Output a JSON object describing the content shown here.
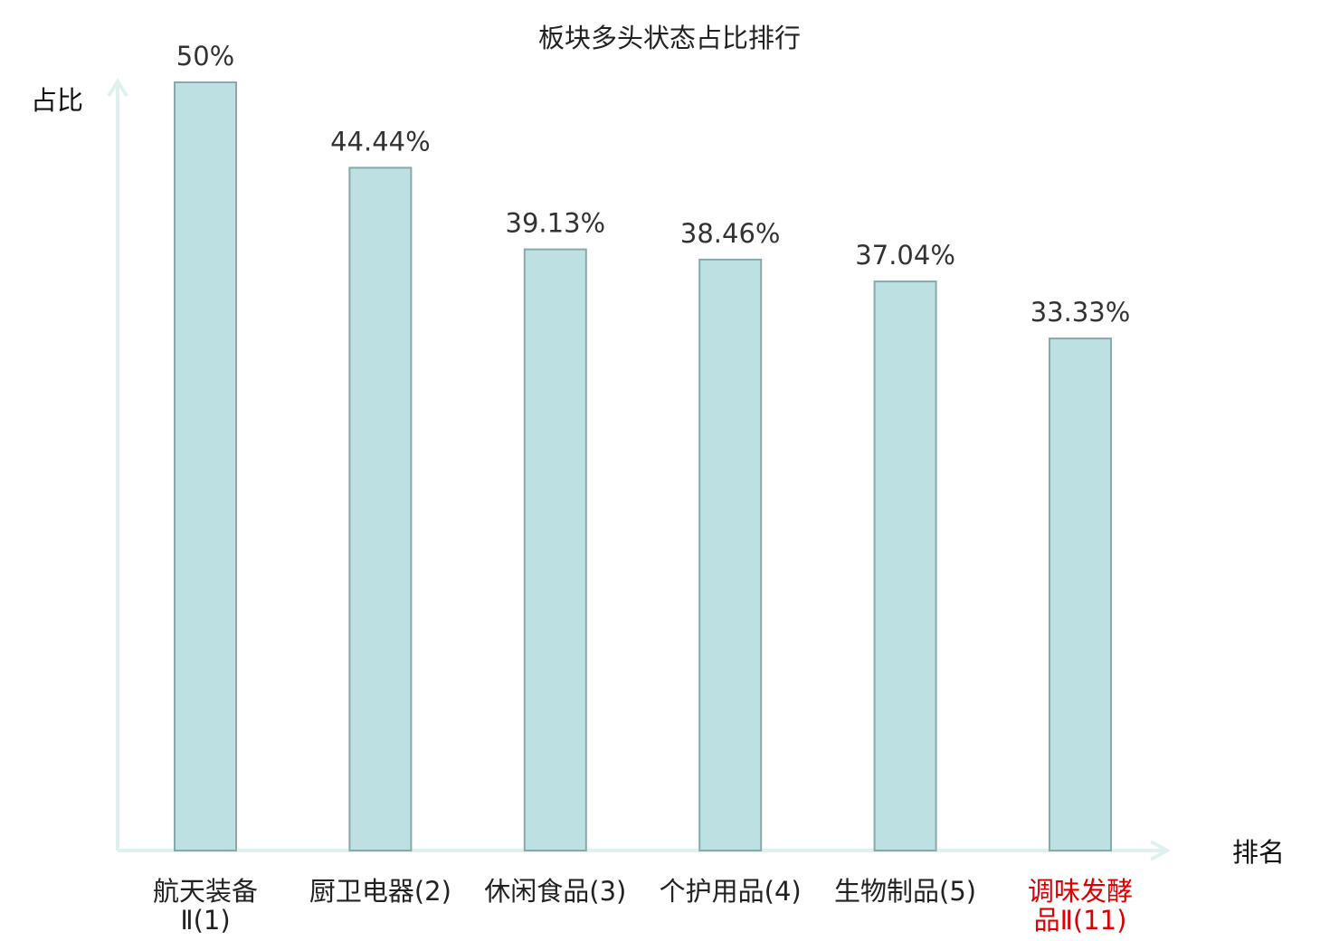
{
  "colors": {
    "bar_fill": "#bde1e3",
    "bar_stroke": "#8aa8aa",
    "axis": "#dff1ef",
    "text": "#222222",
    "highlight": "#dd0000"
  },
  "chart_data": {
    "type": "bar",
    "title": "板块多头状态占比排行",
    "xlabel": "排名",
    "ylabel": "占比",
    "categories": [
      "航天装备Ⅱ(1)",
      "厨卫电器(2)",
      "休闲食品(3)",
      "个护用品(4)",
      "生物制品(5)",
      "调味发酵品Ⅱ(11)"
    ],
    "category_lines": [
      [
        "航天装备",
        "Ⅱ(1)"
      ],
      [
        "厨卫电器(2)"
      ],
      [
        "休闲食品(3)"
      ],
      [
        "个护用品(4)"
      ],
      [
        "生物制品(5)"
      ],
      [
        "调味发酵",
        "品Ⅱ(11)"
      ]
    ],
    "values": [
      50,
      44.44,
      39.13,
      38.46,
      37.04,
      33.33
    ],
    "data_labels": [
      "50%",
      "44.44%",
      "39.13%",
      "38.46%",
      "37.04%",
      "33.33%"
    ],
    "highlight_index": 5,
    "ylim": [
      0,
      50
    ],
    "grid": false,
    "legend": "none"
  }
}
